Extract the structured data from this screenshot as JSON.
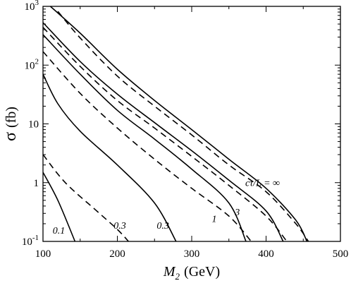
{
  "chart_data": {
    "type": "line",
    "xlabel_italic": "M",
    "xlabel_sub": "2",
    "xlabel_unit": "(GeV)",
    "ylabel_symbol": "σ",
    "ylabel_unit": "(fb)",
    "xlim": [
      100,
      500
    ],
    "ylim": [
      0.1,
      1000
    ],
    "yscale": "log",
    "grid": false,
    "legend": "none",
    "x_ticks": [
      {
        "value": 100,
        "label": "100"
      },
      {
        "value": 200,
        "label": "200"
      },
      {
        "value": 300,
        "label": "300"
      },
      {
        "value": 400,
        "label": "400"
      },
      {
        "value": 500,
        "label": "500"
      }
    ],
    "y_ticks": [
      {
        "value": 0.1,
        "base": "10",
        "exp": "-1"
      },
      {
        "value": 1,
        "base": "1",
        "exp": ""
      },
      {
        "value": 10,
        "base": "10",
        "exp": ""
      },
      {
        "value": 100,
        "base": "10",
        "exp": "2"
      },
      {
        "value": 1000,
        "base": "10",
        "exp": "3"
      }
    ],
    "series": [
      {
        "style": "solid",
        "points": [
          [
            100,
            1.5
          ],
          [
            120,
            0.5
          ],
          [
            143,
            0.1
          ]
        ]
      },
      {
        "style": "dashed",
        "points": [
          [
            100,
            3.0
          ],
          [
            130,
            1.0
          ],
          [
            170,
            0.35
          ],
          [
            200,
            0.16
          ],
          [
            215,
            0.1
          ]
        ]
      },
      {
        "style": "solid",
        "points": [
          [
            100,
            70
          ],
          [
            120,
            22
          ],
          [
            150,
            7.5
          ],
          [
            200,
            2.0
          ],
          [
            250,
            0.45
          ],
          [
            279,
            0.1
          ]
        ]
      },
      {
        "style": "dashed",
        "points": [
          [
            100,
            170
          ],
          [
            150,
            33
          ],
          [
            200,
            8.5
          ],
          [
            250,
            2.5
          ],
          [
            300,
            0.8
          ],
          [
            350,
            0.27
          ],
          [
            380,
            0.1
          ]
        ]
      },
      {
        "style": "solid",
        "points": [
          [
            100,
            330
          ],
          [
            150,
            70
          ],
          [
            200,
            17
          ],
          [
            250,
            5.5
          ],
          [
            300,
            1.7
          ],
          [
            350,
            0.45
          ],
          [
            373,
            0.1
          ]
        ]
      },
      {
        "style": "dashed",
        "points": [
          [
            100,
            440
          ],
          [
            150,
            95
          ],
          [
            200,
            25
          ],
          [
            250,
            8.5
          ],
          [
            300,
            2.8
          ],
          [
            350,
            0.9
          ],
          [
            400,
            0.27
          ],
          [
            428,
            0.1
          ]
        ]
      },
      {
        "style": "solid",
        "points": [
          [
            100,
            530
          ],
          [
            150,
            115
          ],
          [
            200,
            32
          ],
          [
            250,
            10.5
          ],
          [
            300,
            3.5
          ],
          [
            350,
            1.1
          ],
          [
            400,
            0.33
          ],
          [
            423,
            0.1
          ]
        ]
      },
      {
        "style": "dashed",
        "points": [
          [
            120,
            820
          ],
          [
            150,
            290
          ],
          [
            200,
            65
          ],
          [
            250,
            20
          ],
          [
            300,
            6.5
          ],
          [
            350,
            2.0
          ],
          [
            400,
            0.7
          ],
          [
            440,
            0.2
          ],
          [
            457,
            0.1
          ]
        ]
      },
      {
        "style": "solid",
        "points": [
          [
            110,
            1000
          ],
          [
            150,
            350
          ],
          [
            200,
            85
          ],
          [
            250,
            25
          ],
          [
            300,
            8.0
          ],
          [
            350,
            2.5
          ],
          [
            400,
            0.8
          ],
          [
            440,
            0.23
          ],
          [
            455,
            0.1
          ]
        ]
      }
    ],
    "annotations": [
      {
        "text": "0.1",
        "x": 113,
        "y": 0.135
      },
      {
        "text": "0.3",
        "x": 195,
        "y": 0.165
      },
      {
        "text": "0.3",
        "x": 253,
        "y": 0.165
      },
      {
        "text": "1",
        "x": 327,
        "y": 0.215
      },
      {
        "text": "3",
        "x": 358,
        "y": 0.28
      },
      {
        "text": "cτ/L = ∞",
        "x": 372,
        "y": 0.88
      }
    ]
  }
}
